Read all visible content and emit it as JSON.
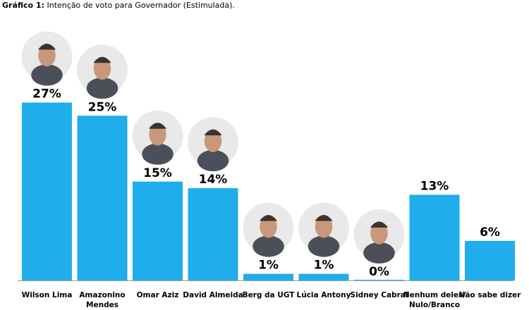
{
  "title": {
    "prefix": "Gráfico 1:",
    "text": "Intenção de voto para Governador (Estimulada)."
  },
  "colors": {
    "bar": "#1FAEEB",
    "axis": "#9a9a9a",
    "text": "#000000"
  },
  "chart_data": {
    "type": "bar",
    "categories": [
      "Wilson Lima",
      "Amazonino Mendes",
      "Omar Aziz",
      "David Almeida",
      "Berg da UGT",
      "Lúcia Antony",
      "Sidney Cabral",
      "Nenhum deles/ Nulo/Branco",
      "Não sabe dizer"
    ],
    "category_lines": [
      [
        "Wilson Lima"
      ],
      [
        "Amazonino",
        "Mendes"
      ],
      [
        "Omar Aziz"
      ],
      [
        "David Almeida"
      ],
      [
        "Berg da UGT"
      ],
      [
        "Lúcia Antony"
      ],
      [
        "Sidney Cabral"
      ],
      [
        "Nenhum deles/",
        "Nulo/Branco"
      ],
      [
        "Não sabe dizer"
      ]
    ],
    "values": [
      27,
      25,
      15,
      14,
      1,
      1,
      0,
      13,
      6
    ],
    "data_labels": [
      "27%",
      "25%",
      "15%",
      "14%",
      "1%",
      "1%",
      "0%",
      "13%",
      "6%"
    ],
    "unit": "%",
    "has_photo": [
      true,
      true,
      true,
      true,
      true,
      true,
      true,
      false,
      false
    ],
    "ylim": [
      0,
      27
    ],
    "grid": false,
    "legend": "none"
  }
}
